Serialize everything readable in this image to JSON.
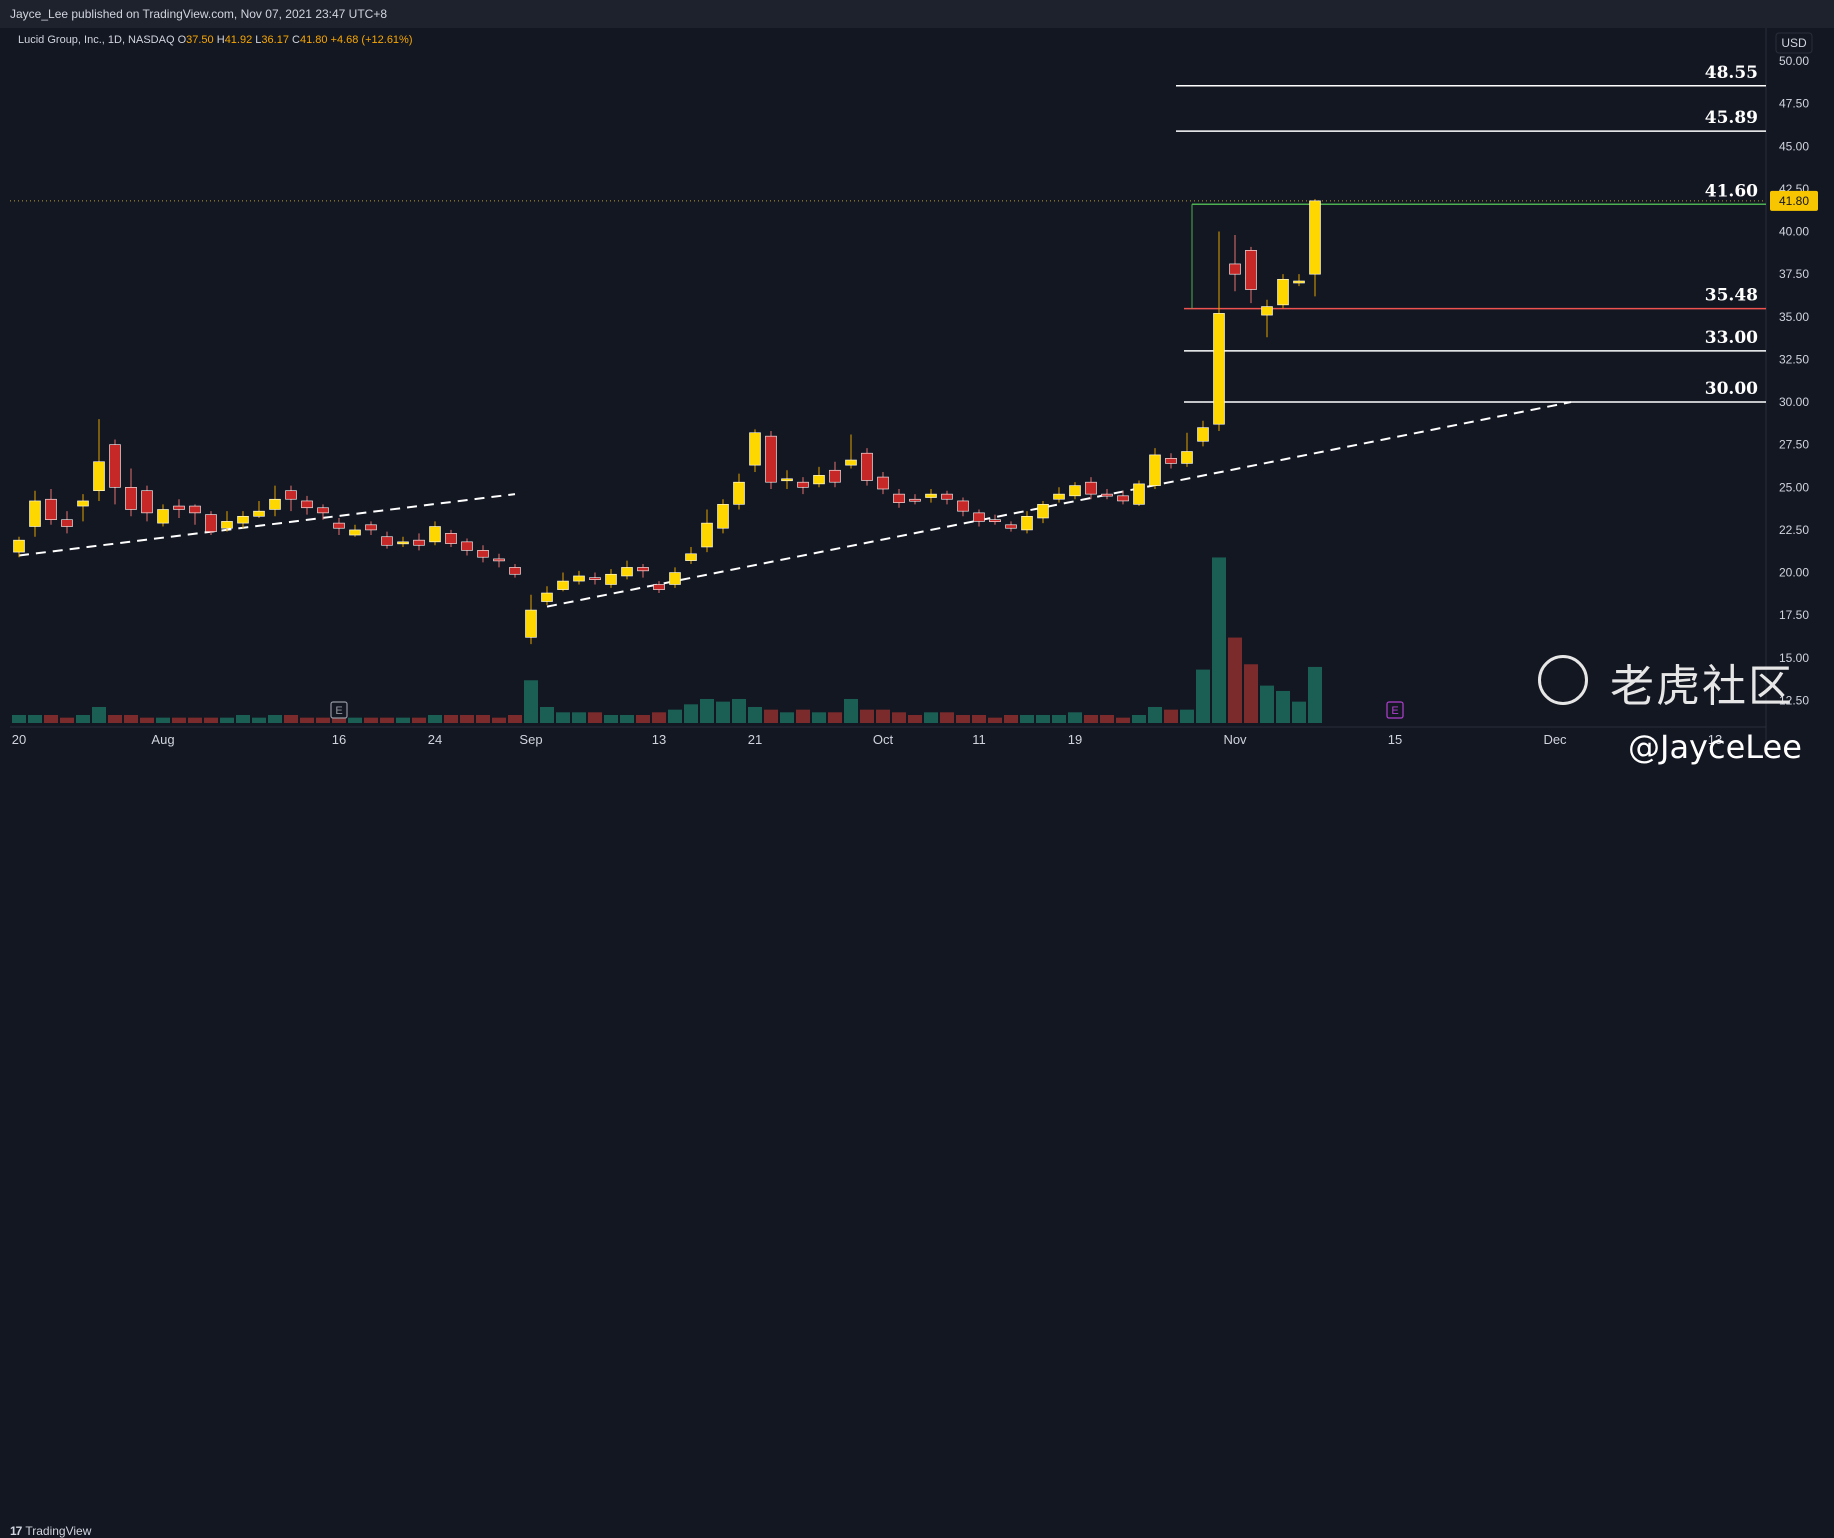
{
  "header": {
    "published": "Jayce_Lee published on TradingView.com, Nov 07, 2021 23:47 UTC+8"
  },
  "legend": {
    "symbol": "Lucid Group, Inc., 1D, NASDAQ",
    "o_label": "O",
    "o": "37.50",
    "h_label": "H",
    "h": "41.92",
    "l_label": "L",
    "l": "36.17",
    "c_label": "C",
    "c": "41.80",
    "change": "+4.68 (+12.61%)"
  },
  "footer": {
    "brand": "TradingView"
  },
  "watermark": {
    "site": "老虎社区",
    "user": "@JayceLee"
  },
  "colors": {
    "background": "#131722",
    "up": "#ffd700",
    "down": "#c62828",
    "vol_up": "#1b5e54",
    "vol_down": "#7b2b2b",
    "level": "#ffffff",
    "resistance": "#ef5350",
    "breakout": "#4caf50",
    "price_tag": "#f7c600"
  },
  "chart_data": {
    "type": "candlestick",
    "currency": "USD",
    "ylim": [
      11.0,
      51.0
    ],
    "y_ticks": [
      "12.50",
      "15.00",
      "17.50",
      "20.00",
      "22.50",
      "25.00",
      "27.50",
      "30.00",
      "32.50",
      "35.00",
      "37.50",
      "40.00",
      "42.50",
      "45.00",
      "47.50",
      "50.00"
    ],
    "x_ticks": [
      {
        "label": "20",
        "index": 0
      },
      {
        "label": "Aug",
        "index": 9
      },
      {
        "label": "16",
        "index": 20
      },
      {
        "label": "24",
        "index": 26
      },
      {
        "label": "Sep",
        "index": 32
      },
      {
        "label": "13",
        "index": 40
      },
      {
        "label": "21",
        "index": 46
      },
      {
        "label": "Oct",
        "index": 54
      },
      {
        "label": "11",
        "index": 60
      },
      {
        "label": "19",
        "index": 66
      },
      {
        "label": "Nov",
        "index": 76
      },
      {
        "label": "15",
        "index": 86
      },
      {
        "label": "Dec",
        "index": 96
      },
      {
        "label": "13",
        "index": 106
      }
    ],
    "candles": [
      [
        21.2,
        21.9,
        20.9,
        22.1,
        3
      ],
      [
        22.7,
        24.2,
        22.1,
        24.8,
        3
      ],
      [
        24.3,
        23.1,
        22.8,
        24.9,
        3
      ],
      [
        23.1,
        22.7,
        22.3,
        23.6,
        2
      ],
      [
        23.9,
        24.2,
        23.0,
        24.6,
        3
      ],
      [
        24.8,
        26.5,
        24.2,
        29.0,
        6
      ],
      [
        27.5,
        25.0,
        24.0,
        27.8,
        3
      ],
      [
        25.0,
        23.7,
        23.3,
        26.1,
        3
      ],
      [
        24.8,
        23.5,
        23.0,
        25.1,
        2
      ],
      [
        22.9,
        23.7,
        22.7,
        24.0,
        2
      ],
      [
        23.9,
        23.7,
        23.2,
        24.3,
        2
      ],
      [
        23.9,
        23.5,
        22.8,
        24.0,
        2
      ],
      [
        23.4,
        22.4,
        22.2,
        23.6,
        2
      ],
      [
        22.6,
        23.0,
        22.4,
        23.6,
        2
      ],
      [
        22.9,
        23.3,
        22.6,
        23.6,
        3
      ],
      [
        23.3,
        23.6,
        23.2,
        24.2,
        2
      ],
      [
        23.7,
        24.3,
        23.3,
        25.1,
        3
      ],
      [
        24.8,
        24.3,
        23.6,
        25.1,
        3
      ],
      [
        24.2,
        23.8,
        23.4,
        24.5,
        2
      ],
      [
        23.8,
        23.5,
        23.1,
        24.0,
        2
      ],
      [
        22.9,
        22.6,
        22.2,
        23.2,
        2
      ],
      [
        22.2,
        22.5,
        22.1,
        22.8,
        2
      ],
      [
        22.8,
        22.5,
        22.2,
        23.0,
        2
      ],
      [
        22.1,
        21.6,
        21.4,
        22.4,
        2
      ],
      [
        21.7,
        21.8,
        21.5,
        22.1,
        2
      ],
      [
        21.9,
        21.6,
        21.3,
        22.3,
        2
      ],
      [
        21.8,
        22.7,
        21.6,
        23.0,
        3
      ],
      [
        22.3,
        21.7,
        21.5,
        22.5,
        3
      ],
      [
        21.8,
        21.3,
        21.0,
        22.0,
        3
      ],
      [
        21.3,
        20.9,
        20.6,
        21.6,
        3
      ],
      [
        20.8,
        20.7,
        20.3,
        21.1,
        2
      ],
      [
        20.3,
        19.9,
        19.7,
        20.5,
        3
      ],
      [
        16.2,
        17.8,
        15.8,
        18.7,
        16
      ],
      [
        18.3,
        18.8,
        18.1,
        19.2,
        6
      ],
      [
        19.0,
        19.5,
        18.9,
        20.0,
        4
      ],
      [
        19.5,
        19.8,
        19.3,
        20.1,
        4
      ],
      [
        19.7,
        19.6,
        19.3,
        20.0,
        4
      ],
      [
        19.3,
        19.9,
        19.1,
        20.2,
        3
      ],
      [
        19.8,
        20.3,
        19.6,
        20.7,
        3
      ],
      [
        20.3,
        20.1,
        19.7,
        20.5,
        3
      ],
      [
        19.3,
        19.0,
        18.8,
        19.5,
        4
      ],
      [
        19.3,
        20.0,
        19.1,
        20.3,
        5
      ],
      [
        20.7,
        21.1,
        20.5,
        21.5,
        7
      ],
      [
        21.5,
        22.9,
        21.2,
        23.7,
        9
      ],
      [
        22.6,
        24.0,
        22.3,
        24.3,
        8
      ],
      [
        24.0,
        25.3,
        23.7,
        25.8,
        9
      ],
      [
        26.3,
        28.2,
        25.9,
        28.4,
        6
      ],
      [
        28.0,
        25.3,
        24.9,
        28.3,
        5
      ],
      [
        25.4,
        25.5,
        24.9,
        26.0,
        4
      ],
      [
        25.3,
        25.0,
        24.6,
        25.6,
        5
      ],
      [
        25.2,
        25.7,
        25.0,
        26.2,
        4
      ],
      [
        26.0,
        25.3,
        25.0,
        26.5,
        4
      ],
      [
        26.3,
        26.6,
        26.1,
        28.1,
        9
      ],
      [
        27.0,
        25.4,
        25.1,
        27.3,
        5
      ],
      [
        25.6,
        24.9,
        24.6,
        25.9,
        5
      ],
      [
        24.6,
        24.1,
        23.8,
        24.9,
        4
      ],
      [
        24.3,
        24.2,
        24.0,
        24.6,
        3
      ],
      [
        24.4,
        24.6,
        24.1,
        24.9,
        4
      ],
      [
        24.6,
        24.3,
        24.0,
        24.8,
        4
      ],
      [
        24.2,
        23.6,
        23.3,
        24.4,
        3
      ],
      [
        23.5,
        23.0,
        22.7,
        23.7,
        3
      ],
      [
        23.1,
        23.0,
        22.8,
        23.4,
        2
      ],
      [
        22.8,
        22.6,
        22.4,
        23.0,
        3
      ],
      [
        22.5,
        23.3,
        22.3,
        23.6,
        3
      ],
      [
        23.2,
        24.0,
        22.9,
        24.2,
        3
      ],
      [
        24.3,
        24.6,
        24.1,
        25.0,
        3
      ],
      [
        24.5,
        25.1,
        24.3,
        25.3,
        4
      ],
      [
        25.3,
        24.6,
        24.3,
        25.6,
        3
      ],
      [
        24.6,
        24.5,
        24.3,
        24.9,
        3
      ],
      [
        24.5,
        24.2,
        24.0,
        24.8,
        2
      ],
      [
        24.0,
        25.2,
        23.9,
        25.4,
        3
      ],
      [
        25.1,
        26.9,
        24.9,
        27.3,
        6
      ],
      [
        26.7,
        26.4,
        26.1,
        27.0,
        5
      ],
      [
        26.4,
        27.1,
        26.2,
        28.2,
        5
      ],
      [
        27.7,
        28.5,
        27.4,
        28.9,
        20
      ],
      [
        28.7,
        35.2,
        28.3,
        40.0,
        62
      ],
      [
        38.1,
        37.5,
        36.5,
        39.8,
        32
      ],
      [
        38.9,
        36.6,
        35.8,
        39.1,
        22
      ],
      [
        35.1,
        35.6,
        33.8,
        36.0,
        14
      ],
      [
        35.7,
        37.2,
        35.5,
        37.5,
        12
      ],
      [
        37.1,
        37.1,
        36.8,
        37.5,
        8
      ],
      [
        37.5,
        41.8,
        36.2,
        41.9,
        21
      ]
    ],
    "annotations": {
      "levels": [
        48.55,
        45.89,
        41.6,
        35.48,
        33.0,
        30.0
      ],
      "level_labels": [
        "48.55",
        "45.89",
        "41.60",
        "35.48",
        "33.00",
        "30.00"
      ],
      "last_price": 41.8,
      "last_price_label": "41.80",
      "trendlines": [
        {
          "from": [
            0,
            21.0
          ],
          "to": [
            31,
            24.6
          ]
        },
        {
          "from": [
            33,
            18.0
          ],
          "to": [
            97,
            30.0
          ]
        }
      ],
      "earnings_markers": [
        {
          "index": 20,
          "label": "E"
        },
        {
          "index": 86,
          "label": "E"
        }
      ]
    }
  }
}
